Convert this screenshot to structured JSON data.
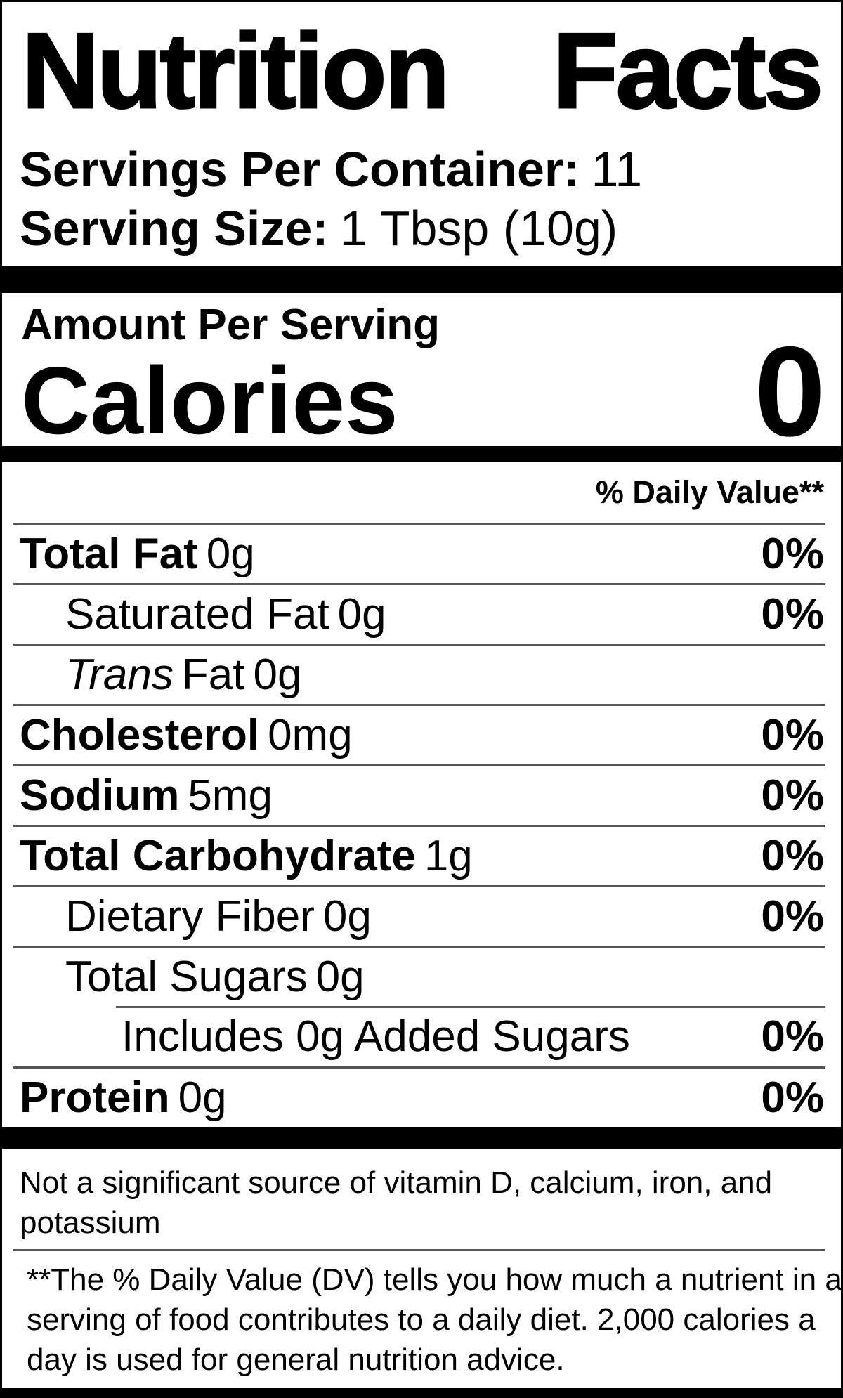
{
  "colors": {
    "text": "#000000",
    "hairline": "#555555",
    "bar": "#000000",
    "background": "#ffffff"
  },
  "header": {
    "title_word1": "Nutrition",
    "title_word2": "Facts",
    "servings_per_container_label": "Servings Per Container:",
    "servings_per_container_value": "11",
    "serving_size_label": "Serving Size:",
    "serving_size_value": "1 Tbsp (10g)"
  },
  "calories_section": {
    "amount_per_serving": "Amount Per Serving",
    "calories_label": "Calories",
    "calories_value": "0"
  },
  "daily_value_header": "% Daily Value**",
  "nutrients": [
    {
      "name": "Total Fat",
      "amount": "0g",
      "daily_value": "0%",
      "style": "bold",
      "indent": 0
    },
    {
      "name": "Saturated Fat",
      "amount": "0g",
      "daily_value": "0%",
      "style": "regular",
      "indent": 1
    },
    {
      "name_italic": "Trans",
      "name": "Fat",
      "amount": "0g",
      "daily_value": "",
      "style": "italic-prefix",
      "indent": 1
    },
    {
      "name": "Cholesterol",
      "amount": "0mg",
      "daily_value": "0%",
      "style": "bold",
      "indent": 0
    },
    {
      "name": "Sodium",
      "amount": "5mg",
      "daily_value": "0%",
      "style": "bold",
      "indent": 0
    },
    {
      "name": "Total Carbohydrate",
      "amount": "1g",
      "daily_value": "0%",
      "style": "bold",
      "indent": 0
    },
    {
      "name": "Dietary Fiber",
      "amount": "0g",
      "daily_value": "0%",
      "style": "regular",
      "indent": 1
    },
    {
      "name": "Total Sugars",
      "amount": "0g",
      "daily_value": "",
      "style": "regular",
      "indent": 1
    },
    {
      "name": "Includes 0g Added Sugars",
      "amount": "",
      "daily_value": "0%",
      "style": "regular",
      "indent": 2
    },
    {
      "name": "Protein",
      "amount": "0g",
      "daily_value": "0%",
      "style": "bold",
      "indent": 0
    }
  ],
  "footnotes": {
    "not_significant_lines": [
      "Not a significant source of vitamin D, calcium, iron, and",
      "potassium"
    ],
    "daily_value_lines": [
      "**The % Daily Value (DV) tells you how much a nutrient in a",
      "serving of food contributes to a daily diet. 2,000 calories a",
      "day is used for general nutrition advice."
    ]
  }
}
